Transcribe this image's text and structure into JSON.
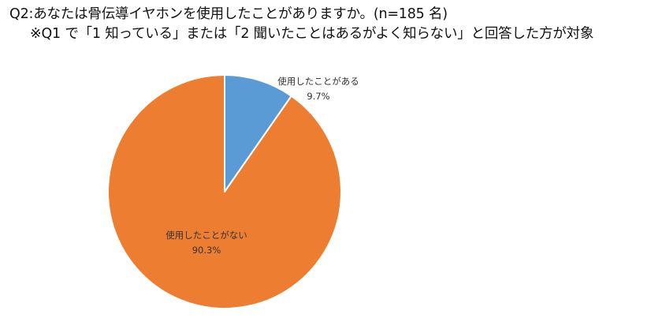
{
  "chart_data": {
    "type": "pie",
    "title": "Q2:あなたは骨伝導イヤホンを使用したことがありますか。(n=185 名)",
    "subtitle": "※Q1 で「1 知っている」または「2 聞いたことはあるがよく知らない」と回答した方が対象",
    "slices": [
      {
        "label": "使用したことがある",
        "value": 9.7,
        "value_label": "9.7%",
        "color": "#5B9BD5"
      },
      {
        "label": "使用したことがない",
        "value": 90.3,
        "value_label": "90.3%",
        "color": "#ED7D31"
      }
    ],
    "start_angle_deg": 0,
    "direction": "clockwise"
  }
}
